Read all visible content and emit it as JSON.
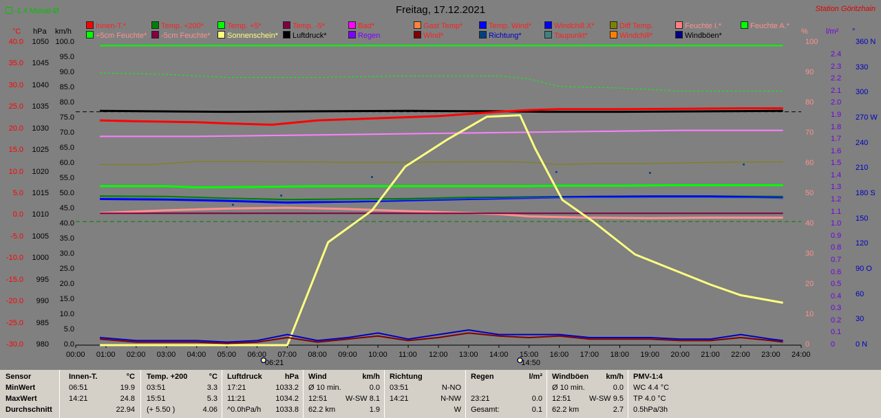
{
  "header": {
    "title": "Freitag, 17.12.2021",
    "station": "Station Göritzhain",
    "monat": "-1.4 Monat-Ø"
  },
  "legend": [
    {
      "label": "Innen-T.*",
      "color": "#ff0000",
      "text_color": "#ff2020"
    },
    {
      "label": "Temp. +200*",
      "color": "#008000",
      "text_color": "#ff2020"
    },
    {
      "label": "Temp. +5*",
      "color": "#00ff00",
      "text_color": "#ff2020"
    },
    {
      "label": "Temp. -5*",
      "color": "#800040",
      "text_color": "#ff2020"
    },
    {
      "label": "Bad*",
      "color": "#ff00ff",
      "text_color": "#ff2020"
    },
    {
      "label": "Gast Temp*",
      "color": "#ff8040",
      "text_color": "#ff2020"
    },
    {
      "label": "Temp. Wind*",
      "color": "#0000ff",
      "text_color": "#ff2020"
    },
    {
      "label": "Windchill X*",
      "color": "#0000ff",
      "text_color": "#ff2020"
    },
    {
      "label": "Diff Temp.",
      "color": "#808000",
      "text_color": "#ff2020"
    },
    {
      "label": "Feuchte I.*",
      "color": "#ff8080",
      "text_color": "#ff9090"
    },
    {
      "label": "Feuchte A.*",
      "color": "#00ff00",
      "text_color": "#ff9090"
    },
    {
      "label": "+5cm Feuchte*",
      "color": "#00ff00",
      "text_color": "#ff9090"
    },
    {
      "label": "-5cm Feuchte*",
      "color": "#800040",
      "text_color": "#ff9090"
    },
    {
      "label": "Sonnenschein*",
      "color": "#ffff80",
      "text_color": "#ffff80"
    },
    {
      "label": "Luftdruck*",
      "color": "#000000",
      "text_color": "#000000"
    },
    {
      "label": "Regen",
      "color": "#8000ff",
      "text_color": "#8000ff"
    },
    {
      "label": "Wind*",
      "color": "#800000",
      "text_color": "#ff2020"
    },
    {
      "label": "Richtung*",
      "color": "#004080",
      "text_color": "#0000c0"
    },
    {
      "label": "Taupunkt*",
      "color": "#408080",
      "text_color": "#ff2020"
    },
    {
      "label": "Windchill*",
      "color": "#ff8000",
      "text_color": "#ff2020"
    },
    {
      "label": "Windböen*",
      "color": "#000080",
      "text_color": "#000000"
    }
  ],
  "axes": {
    "left_headers": [
      "°C",
      "hPa",
      "km/h"
    ],
    "right_headers": [
      "%",
      "l/m²",
      "°"
    ],
    "temp_ticks": [
      "40.0",
      "35.0",
      "30.0",
      "25.0",
      "20.0",
      "15.0",
      "10.0",
      "5.0",
      "0.0",
      "-5.0",
      "-10.0",
      "-15.0",
      "-20.0",
      "-25.0",
      "-30.0"
    ],
    "hpa_ticks": [
      "1050",
      "1045",
      "1040",
      "1035",
      "1030",
      "1025",
      "1020",
      "1015",
      "1010",
      "1005",
      "1000",
      "995",
      "990",
      "985",
      "980"
    ],
    "kmh_ticks": [
      "100.0",
      "95.0",
      "90.0",
      "85.0",
      "80.0",
      "75.0",
      "70.0",
      "65.0",
      "60.0",
      "55.0",
      "50.0",
      "45.0",
      "40.0",
      "35.0",
      "30.0",
      "25.0",
      "20.0",
      "15.0",
      "10.0",
      "5.0",
      "0.0"
    ],
    "pct_ticks": [
      "100",
      "90",
      "80",
      "70",
      "60",
      "50",
      "40",
      "30",
      "20",
      "10",
      "0"
    ],
    "rain_ticks": [
      "2.4",
      "2.3",
      "2.2",
      "2.1",
      "2.0",
      "1.9",
      "1.8",
      "1.7",
      "1.6",
      "1.5",
      "1.4",
      "1.3",
      "1.2",
      "1.1",
      "1.0",
      "0.9",
      "0.8",
      "0.7",
      "0.6",
      "0.5",
      "0.4",
      "0.3",
      "0.2",
      "0.1",
      "0"
    ],
    "deg_ticks": [
      "360 N",
      "330",
      "300",
      "270 W",
      "240",
      "210",
      "180 S",
      "150",
      "120",
      "90 O",
      "60",
      "30",
      "0 N"
    ],
    "x_ticks": [
      "00:00",
      "01:00",
      "02:00",
      "03:00",
      "04:00",
      "05:00",
      "06:00",
      "07:00",
      "08:00",
      "09:00",
      "10:00",
      "11:00",
      "12:00",
      "13:00",
      "14:00",
      "15:00",
      "16:00",
      "17:00",
      "18:00",
      "19:00",
      "20:00",
      "21:00",
      "22:00",
      "23:00",
      "24:00"
    ],
    "sunrise": "06:21",
    "sunset": "14:50"
  },
  "chart_data": {
    "type": "line",
    "x_unit": "hour",
    "x_range": [
      0,
      24
    ],
    "y_range_temp": [
      -30,
      40
    ],
    "y_range_hpa": [
      980,
      1050
    ],
    "y_range_kmh": [
      0,
      100
    ],
    "y_range_pct": [
      0,
      100
    ],
    "series": [
      {
        "name": "Luftdruck*",
        "axis": "hpa",
        "color": "#000000",
        "width": 3,
        "x": [
          0.8,
          5,
          8,
          11,
          14,
          15.5,
          18,
          21,
          23.4
        ],
        "y": [
          1034.2,
          1034.0,
          1034.1,
          1034.2,
          1034.1,
          1034.0,
          1034.0,
          1034.1,
          1034.2
        ]
      },
      {
        "name": "Innen-T.*",
        "axis": "temp",
        "color": "#ff0000",
        "width": 3,
        "x": [
          0.8,
          2,
          4,
          5,
          6.5,
          8,
          10,
          12,
          13,
          14,
          15,
          16,
          18,
          20,
          22,
          23.4
        ],
        "y": [
          22.0,
          21.8,
          21.6,
          21.3,
          21.0,
          22.0,
          22.5,
          23.0,
          23.5,
          24.0,
          24.4,
          24.6,
          24.6,
          24.7,
          24.8,
          24.8
        ]
      },
      {
        "name": "Feuchte I.*",
        "axis": "pct",
        "color": "#ff80ff",
        "width": 2,
        "x": [
          0.8,
          4,
          8,
          12,
          16,
          20,
          23.4
        ],
        "y": [
          69,
          69,
          69.5,
          70,
          70.5,
          71,
          71
        ]
      },
      {
        "name": "Diff Temp.",
        "axis": "temp",
        "color": "#808000",
        "width": 1,
        "x": [
          0.8,
          2.5,
          4,
          6,
          9,
          11,
          14,
          15,
          16,
          17,
          19,
          21,
          23.4
        ],
        "y": [
          11.8,
          11.8,
          12.5,
          12.5,
          12.3,
          12.3,
          12.5,
          12.3,
          11.8,
          12.0,
          12.0,
          12.3,
          12.4
        ]
      },
      {
        "name": "Feuchte A.*",
        "axis": "pct",
        "color": "#00ff00",
        "width": 1,
        "dash": true,
        "x": [
          0.8,
          3,
          5,
          8,
          11,
          14,
          15,
          16,
          18,
          20,
          22,
          23.4
        ],
        "y": [
          90,
          89.5,
          88.5,
          88.5,
          89,
          89,
          88,
          85.5,
          85,
          84,
          84,
          84
        ]
      },
      {
        "name": "+5cm Feuchte*",
        "axis": "pct",
        "color": "#00ff00",
        "width": 2,
        "x": [
          0.8,
          15,
          23.4
        ],
        "y": [
          99,
          99,
          99
        ]
      },
      {
        "name": "Temp. +5*",
        "axis": "temp",
        "color": "#00ff00",
        "width": 3,
        "x": [
          0.8,
          3,
          4,
          6,
          8,
          12,
          15,
          16,
          18,
          20,
          23.4
        ],
        "y": [
          6.8,
          6.8,
          6.5,
          6.6,
          6.8,
          6.8,
          6.8,
          6.9,
          6.9,
          7.0,
          7.0
        ]
      },
      {
        "name": "Temp. +200*",
        "axis": "temp",
        "color": "#008000",
        "width": 2,
        "x": [
          0.8,
          3,
          5,
          7,
          9,
          11,
          13,
          15,
          17,
          19,
          21,
          23.4
        ],
        "y": [
          4.5,
          4.4,
          4.0,
          3.7,
          3.8,
          3.9,
          4.2,
          4.3,
          4.4,
          4.5,
          4.5,
          4.4
        ]
      },
      {
        "name": "Temp. Wind*",
        "axis": "temp",
        "color": "#0000ff",
        "width": 3,
        "x": [
          0.8,
          3,
          5,
          7,
          9,
          11,
          13,
          15,
          17,
          19,
          21,
          23.4
        ],
        "y": [
          3.8,
          3.7,
          3.4,
          3.0,
          3.2,
          3.5,
          3.8,
          4.1,
          4.3,
          4.4,
          4.4,
          4.1
        ]
      },
      {
        "name": "Taupunkt*",
        "axis": "temp",
        "color": "#408080",
        "width": 1,
        "x": [
          0.8,
          3,
          5,
          7,
          9,
          11,
          13,
          15,
          17,
          19,
          21,
          23.4
        ],
        "y": [
          4.2,
          4.0,
          3.8,
          3.4,
          3.4,
          3.6,
          3.9,
          4.1,
          4.1,
          4.1,
          4.1,
          4.0
        ]
      },
      {
        "name": "Gast Temp*",
        "axis": "temp",
        "color": "#ff9090",
        "width": 3,
        "x": [
          0.8,
          3,
          5,
          7,
          9,
          11,
          13,
          14,
          15,
          17,
          19,
          21,
          23.4
        ],
        "y": [
          0.6,
          1.2,
          1.6,
          1.8,
          1.5,
          1.0,
          0.6,
          0.3,
          -0.2,
          -0.5,
          -0.6,
          -0.5,
          -0.5
        ]
      },
      {
        "name": "Temp. -5*",
        "axis": "temp",
        "color": "#800040",
        "width": 2,
        "x": [
          0.8,
          23.4
        ],
        "y": [
          0.5,
          0.5
        ]
      },
      {
        "name": "Sonnenschein*",
        "axis": "kmh",
        "color": "#ffff80",
        "width": 3,
        "x": [
          0.8,
          6.35,
          7,
          8.35,
          9.8,
          10.9,
          12.3,
          13.6,
          14.7,
          15.2,
          16.1,
          17.1,
          18.5,
          20,
          21,
          22,
          23.4
        ],
        "y": [
          0,
          0,
          0,
          34,
          44.5,
          59,
          68,
          75.5,
          76,
          65,
          48,
          41,
          30,
          24,
          20,
          16.5,
          14
        ]
      },
      {
        "name": "Windböen*",
        "axis": "kmh",
        "color": "#0000c0",
        "width": 2,
        "x": [
          0.8,
          2,
          4,
          5,
          6,
          7,
          8,
          9,
          10,
          11,
          12,
          13,
          14,
          15,
          16,
          17,
          18,
          19,
          20,
          21,
          22,
          23,
          23.4
        ],
        "y": [
          2.5,
          1.5,
          1.5,
          1.0,
          1.5,
          3.5,
          1.5,
          2.5,
          4.0,
          2.0,
          3.5,
          5.0,
          3.5,
          3.5,
          3.5,
          2.5,
          2.5,
          2.5,
          2.0,
          2.0,
          3.5,
          2.0,
          1.5
        ]
      },
      {
        "name": "Wind*",
        "axis": "kmh",
        "color": "#800000",
        "width": 2,
        "x": [
          0.8,
          2,
          4,
          5,
          6,
          7,
          8,
          9,
          10,
          11,
          12,
          13,
          14,
          15,
          16,
          17,
          18,
          19,
          20,
          21,
          22,
          23,
          23.4
        ],
        "y": [
          2.0,
          1.0,
          1.0,
          0.5,
          1.0,
          2.5,
          1.0,
          2.0,
          3.0,
          1.5,
          2.5,
          4.0,
          3.0,
          2.5,
          3.0,
          2.0,
          2.0,
          2.0,
          1.5,
          1.5,
          2.5,
          1.5,
          1.0
        ]
      }
    ],
    "direction_points": {
      "name": "Richtung*",
      "axis": "deg",
      "color": "#004080",
      "x": [
        5.2,
        6.8,
        9.8,
        15.9,
        19.0,
        22.1
      ],
      "y": [
        167,
        178,
        200,
        206,
        205,
        215
      ]
    },
    "reference_lines": [
      {
        "name": "luftdruck-ref",
        "axis": "hpa",
        "value": 1034.0,
        "color": "#000000",
        "dash": true
      },
      {
        "name": "zero-ref",
        "axis": "temp",
        "value": -1.4,
        "color": "#008000",
        "dash": true
      }
    ]
  },
  "stats": {
    "sections": [
      {
        "title": "Sensor",
        "rows": [
          {
            "a": "MinWert"
          },
          {
            "a": "MaxWert"
          },
          {
            "a": "Durchschnitt"
          }
        ]
      },
      {
        "title": "Innen-T.",
        "unit": "°C",
        "rows": [
          {
            "a": "06:51",
            "v": "19.9"
          },
          {
            "a": "14:21",
            "v": "24.8"
          },
          {
            "a": "",
            "v": "22.94"
          }
        ]
      },
      {
        "title": "Temp. +200",
        "unit": "°C",
        "rows": [
          {
            "a": "03:51",
            "v": "3.3"
          },
          {
            "a": "15:51",
            "v": "5.3"
          },
          {
            "a": "(+ 5.50 )",
            "v": "4.06"
          }
        ]
      },
      {
        "title": "Luftdruck",
        "unit": "hPa",
        "rows": [
          {
            "a": "17:21",
            "v": "1033.2"
          },
          {
            "a": "11:21",
            "v": "1034.2"
          },
          {
            "a": "^0.0hPa/h",
            "v": "1033.8"
          }
        ]
      },
      {
        "title": "Wind",
        "unit": "km/h",
        "rows": [
          {
            "a": "Ø 10 min.",
            "v": "0.0"
          },
          {
            "a": "12:51",
            "m": "W-SW",
            "v": "8.1"
          },
          {
            "a": "62.2 km",
            "v": "1.9"
          }
        ]
      },
      {
        "title": "Richtung",
        "rows": [
          {
            "a": "03:51",
            "v": "N-NO"
          },
          {
            "a": "14:21",
            "v": "N-NW"
          },
          {
            "a": "",
            "v": "W"
          }
        ]
      },
      {
        "title": "Regen",
        "unit": "l/m²",
        "rows": [
          {
            "a": ""
          },
          {
            "a": "23:21",
            "v": "0.0"
          },
          {
            "a": "Gesamt:",
            "v": "0.1"
          }
        ]
      },
      {
        "title": "Windböen",
        "unit": "km/h",
        "rows": [
          {
            "a": "Ø 10 min.",
            "v": "0.0"
          },
          {
            "a": "12:51",
            "m": "W-SW",
            "v": "9.5"
          },
          {
            "a": "62.2 km",
            "v": "2.7"
          }
        ]
      },
      {
        "title": "PMV-1:4",
        "rows": [
          {
            "a": "WC 4.4 °C"
          },
          {
            "a": "TP 4.0 °C"
          },
          {
            "a": "0.5hPa/3h"
          }
        ]
      }
    ]
  }
}
